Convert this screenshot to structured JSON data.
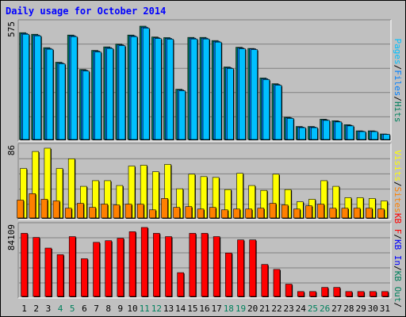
{
  "title": "Daily usage for October 2014",
  "colors": {
    "background": "#c0c0c0",
    "pages": "#00c0ff",
    "files": "#0080ff",
    "hits": "#00805c",
    "visits": "#ffff00",
    "sites": "#ff8000",
    "kbin": "#ff0000",
    "kbout": "#0000ff",
    "weekday_tick": "#000000",
    "weekend_tick": "#00805c"
  },
  "chart_data": [
    {
      "type": "bar",
      "panel": "hits-files-pages",
      "ymax_label": "575",
      "ylim": [
        0,
        575
      ],
      "right_label": [
        {
          "text": "Pages",
          "color": "#00c0ff"
        },
        {
          "text": "/",
          "color": "#000000"
        },
        {
          "text": "Files",
          "color": "#0080ff"
        },
        {
          "text": "/",
          "color": "#000000"
        },
        {
          "text": "Hits",
          "color": "#00805c"
        }
      ],
      "categories": [
        "1",
        "2",
        "3",
        "4",
        "5",
        "6",
        "7",
        "8",
        "9",
        "10",
        "11",
        "12",
        "13",
        "14",
        "15",
        "16",
        "17",
        "18",
        "19",
        "20",
        "21",
        "22",
        "23",
        "24",
        "25",
        "26",
        "27",
        "28",
        "29",
        "30",
        "31"
      ],
      "series": [
        {
          "name": "Hits",
          "values": [
            542,
            534,
            466,
            392,
            530,
            355,
            452,
            470,
            484,
            530,
            575,
            520,
            517,
            255,
            518,
            518,
            502,
            368,
            468,
            462,
            312,
            283,
            113,
            66,
            66,
            103,
            95,
            75,
            44,
            44,
            28
          ]
        },
        {
          "name": "Files",
          "values": [
            538,
            530,
            462,
            388,
            526,
            351,
            448,
            466,
            480,
            526,
            570,
            516,
            513,
            251,
            514,
            514,
            498,
            364,
            464,
            460,
            308,
            279,
            110,
            63,
            63,
            100,
            92,
            72,
            42,
            42,
            27
          ]
        },
        {
          "name": "Pages",
          "values": [
            534,
            526,
            458,
            384,
            522,
            347,
            444,
            462,
            476,
            522,
            565,
            512,
            509,
            247,
            510,
            510,
            494,
            360,
            460,
            456,
            304,
            275,
            107,
            60,
            60,
            97,
            89,
            69,
            40,
            40,
            26
          ]
        }
      ]
    },
    {
      "type": "bar",
      "panel": "visits-sites",
      "ymax_label": "86",
      "ylim": [
        0,
        86
      ],
      "right_label": [
        {
          "text": "Visits",
          "color": "#ffff00"
        },
        {
          "text": "/",
          "color": "#000000"
        },
        {
          "text": "Sites",
          "color": "#ff8000"
        }
      ],
      "categories": [
        "1",
        "2",
        "3",
        "4",
        "5",
        "6",
        "7",
        "8",
        "9",
        "10",
        "11",
        "12",
        "13",
        "14",
        "15",
        "16",
        "17",
        "18",
        "19",
        "20",
        "21",
        "22",
        "23",
        "24",
        "25",
        "26",
        "27",
        "28",
        "29",
        "30",
        "31"
      ],
      "series": [
        {
          "name": "Visits",
          "values": [
            61,
            82,
            86,
            61,
            73,
            39,
            46,
            46,
            40,
            64,
            65,
            57,
            66,
            36,
            54,
            51,
            50,
            35,
            55,
            40,
            34,
            54,
            35,
            20,
            23,
            46,
            39,
            25,
            25,
            24,
            21
          ]
        },
        {
          "name": "Sites",
          "values": [
            22,
            30,
            23,
            21,
            12,
            18,
            13,
            17,
            16,
            17,
            17,
            10,
            24,
            13,
            14,
            11,
            13,
            10,
            11,
            11,
            12,
            18,
            16,
            11,
            15,
            17,
            12,
            12,
            12,
            12,
            11
          ]
        }
      ]
    },
    {
      "type": "bar",
      "panel": "kb",
      "ymax_label": "84109",
      "ylim": [
        0,
        84109
      ],
      "right_label": [
        {
          "text": "KB F",
          "color": "#ff0000"
        },
        {
          "text": "/",
          "color": "#000000"
        },
        {
          "text": "KB In",
          "color": "#0000ff"
        },
        {
          "text": "/",
          "color": "#000000"
        },
        {
          "text": "KB Out",
          "color": "#00805c"
        },
        {
          "text": "/",
          "color": "#000000"
        }
      ],
      "categories": [
        "1",
        "2",
        "3",
        "4",
        "5",
        "6",
        "7",
        "8",
        "9",
        "10",
        "11",
        "12",
        "13",
        "14",
        "15",
        "16",
        "17",
        "18",
        "19",
        "20",
        "21",
        "22",
        "23",
        "24",
        "25",
        "26",
        "27",
        "28",
        "29",
        "30",
        "31"
      ],
      "series": [
        {
          "name": "KB F",
          "values": [
            76950,
            71950,
            58950,
            50950,
            72950,
            45950,
            65950,
            67950,
            70950,
            78950,
            84109,
            76950,
            72950,
            28950,
            76950,
            76950,
            72950,
            52950,
            68950,
            68950,
            38950,
            32950,
            14950,
            5950,
            5950,
            10950,
            10950,
            5950,
            5950,
            5950,
            5950
          ]
        }
      ]
    }
  ],
  "x_ticks": [
    {
      "label": "1",
      "weekend": false
    },
    {
      "label": "2",
      "weekend": false
    },
    {
      "label": "3",
      "weekend": false
    },
    {
      "label": "4",
      "weekend": true
    },
    {
      "label": "5",
      "weekend": true
    },
    {
      "label": "6",
      "weekend": false
    },
    {
      "label": "7",
      "weekend": false
    },
    {
      "label": "8",
      "weekend": false
    },
    {
      "label": "9",
      "weekend": false
    },
    {
      "label": "10",
      "weekend": false
    },
    {
      "label": "11",
      "weekend": true
    },
    {
      "label": "12",
      "weekend": true
    },
    {
      "label": "13",
      "weekend": false
    },
    {
      "label": "14",
      "weekend": false
    },
    {
      "label": "15",
      "weekend": false
    },
    {
      "label": "16",
      "weekend": false
    },
    {
      "label": "17",
      "weekend": false
    },
    {
      "label": "18",
      "weekend": true
    },
    {
      "label": "19",
      "weekend": true
    },
    {
      "label": "20",
      "weekend": false
    },
    {
      "label": "21",
      "weekend": false
    },
    {
      "label": "22",
      "weekend": false
    },
    {
      "label": "23",
      "weekend": false
    },
    {
      "label": "24",
      "weekend": false
    },
    {
      "label": "25",
      "weekend": true
    },
    {
      "label": "26",
      "weekend": true
    },
    {
      "label": "27",
      "weekend": false
    },
    {
      "label": "28",
      "weekend": false
    },
    {
      "label": "29",
      "weekend": false
    },
    {
      "label": "30",
      "weekend": false
    },
    {
      "label": "31",
      "weekend": false
    }
  ]
}
